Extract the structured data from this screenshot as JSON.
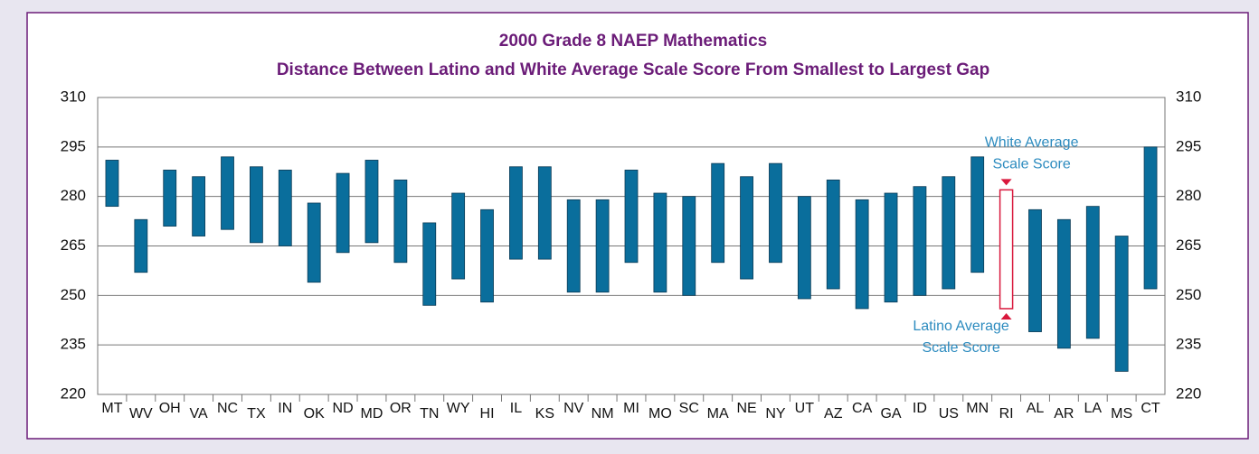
{
  "chart_data": {
    "type": "floating-bar",
    "title": "2000 Grade 8 NAEP Mathematics",
    "subtitle": "Distance Between Latino and White Average Scale Score From Smallest to Largest Gap",
    "categories": [
      "MT",
      "WV",
      "OH",
      "VA",
      "NC",
      "TX",
      "IN",
      "OK",
      "ND",
      "MD",
      "OR",
      "TN",
      "WY",
      "HI",
      "IL",
      "KS",
      "NV",
      "NM",
      "MI",
      "MO",
      "SC",
      "MA",
      "NE",
      "NY",
      "UT",
      "AZ",
      "CA",
      "GA",
      "ID",
      "US",
      "MN",
      "RI",
      "AL",
      "AR",
      "LA",
      "MS",
      "CT"
    ],
    "white": [
      291,
      273,
      288,
      286,
      292,
      289,
      288,
      278,
      287,
      291,
      285,
      272,
      281,
      276,
      289,
      289,
      279,
      279,
      288,
      281,
      280,
      290,
      286,
      290,
      280,
      285,
      279,
      281,
      283,
      286,
      292,
      282,
      276,
      273,
      277,
      268,
      295
    ],
    "latino": [
      277,
      257,
      271,
      268,
      270,
      266,
      265,
      254,
      263,
      266,
      260,
      247,
      255,
      248,
      261,
      261,
      251,
      251,
      260,
      251,
      250,
      260,
      255,
      260,
      249,
      252,
      246,
      248,
      250,
      252,
      257,
      246,
      239,
      234,
      237,
      227,
      252
    ],
    "color": "#0a6e9c",
    "highlight_index": 31,
    "highlight_color": "#d9183c",
    "annotation_color": "#2c8bbf",
    "annotations": {
      "white": [
        "White Average",
        "Scale Score"
      ],
      "latino": [
        "Latino Average",
        "Scale Score"
      ]
    },
    "ylim": [
      220,
      310
    ],
    "yticks": [
      220,
      235,
      250,
      265,
      280,
      295,
      310
    ],
    "grid": true
  }
}
